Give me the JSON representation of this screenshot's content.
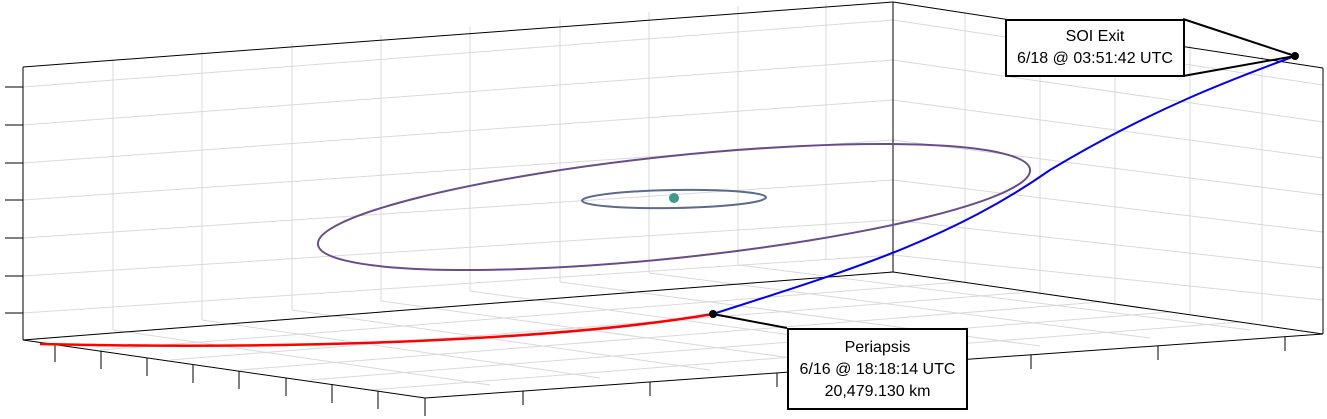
{
  "scene": {
    "description_none": "",
    "colors": {
      "inbound_trajectory": "#ff0000",
      "outbound_trajectory": "#0000ff",
      "outer_orbit": "#6a4c8c",
      "inner_orbit": "#5c6a8e",
      "central_body": "#3d9a8c",
      "grid": "#d6d6d6",
      "axes": "#000000"
    },
    "markers": [
      {
        "name": "periapsis",
        "color": "#000000"
      },
      {
        "name": "soi-exit",
        "color": "#000000"
      }
    ]
  },
  "callouts": {
    "soi_exit": {
      "title": "SOI Exit",
      "time": "6/18 @ 03:51:42 UTC"
    },
    "periapsis": {
      "title": "Periapsis",
      "time": "6/16 @ 18:18:14 UTC",
      "altitude": "20,479.130 km"
    }
  }
}
